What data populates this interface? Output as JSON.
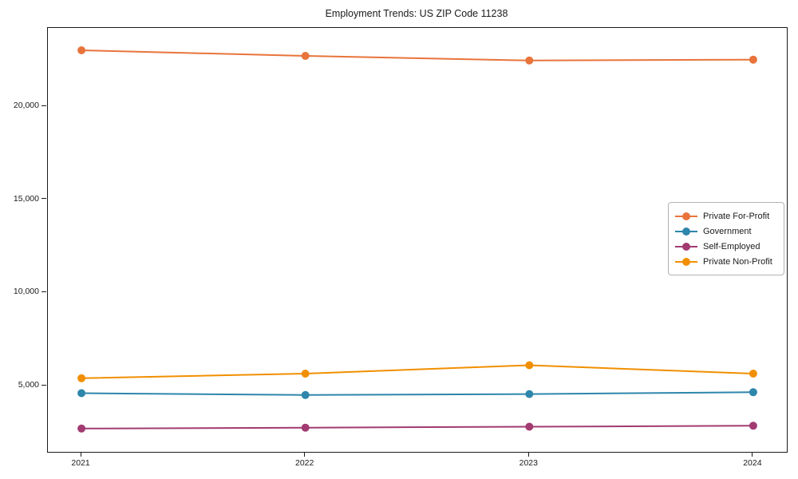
{
  "chart_data": {
    "type": "line",
    "title": "Employment Trends: US ZIP Code 11238",
    "x": [
      2021,
      2022,
      2023,
      2024
    ],
    "xtick_labels": [
      "2021",
      "2022",
      "2023",
      "2024"
    ],
    "series": [
      {
        "name": "Private For-Profit",
        "color": "#E8743B",
        "values": [
          23000,
          22700,
          22450,
          22500
        ]
      },
      {
        "name": "Government",
        "color": "#2E86AB",
        "values": [
          4600,
          4500,
          4550,
          4650
        ]
      },
      {
        "name": "Self-Employed",
        "color": "#A23B72",
        "values": [
          2700,
          2750,
          2800,
          2850
        ]
      },
      {
        "name": "Private Non-Profit",
        "color": "#F18F01",
        "values": [
          5400,
          5650,
          6100,
          5650
        ]
      }
    ],
    "yticks": [
      5000,
      10000,
      15000,
      20000
    ],
    "ytick_labels": [
      "5,000",
      "10,000",
      "15,000",
      "20,000"
    ],
    "xlabel": "",
    "ylabel": "",
    "xlim": [
      2020.85,
      2024.15
    ],
    "ylim": [
      1450,
      24200
    ],
    "grid": false,
    "legend_position": "center right",
    "marker": "circle",
    "axis_color": "#1a1a1a"
  }
}
